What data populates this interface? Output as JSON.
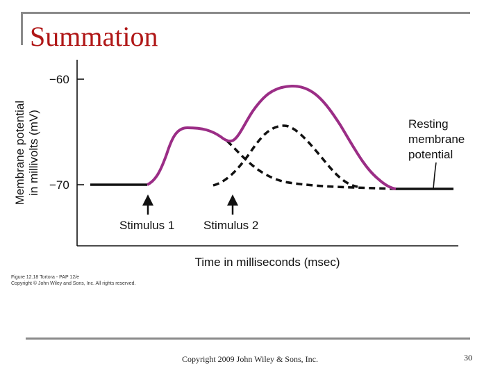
{
  "slide": {
    "title": "Summation",
    "footer": "Copyright 2009 John Wiley & Sons, Inc.",
    "page_number": "30"
  },
  "figure": {
    "y_axis_label_line1": "Membrane potential",
    "y_axis_label_line2": "in millivolts (mV)",
    "y_tick_top": "−60",
    "y_tick_bottom": "−70",
    "x_axis_label": "Time in milliseconds (msec)",
    "stimulus_1": "Stimulus 1",
    "stimulus_2": "Stimulus 2",
    "resting_line1": "Resting",
    "resting_line2": "membrane",
    "resting_line3": "potential",
    "caption_line1": "Figure 12.18  Tortora - PAP 12/e",
    "caption_line2": "Copyright © John Wiley and Sons, Inc. All rights reserved."
  },
  "colors": {
    "title": "#b01717",
    "summed_potential": "#9b2d86",
    "baseline": "#111111"
  }
}
